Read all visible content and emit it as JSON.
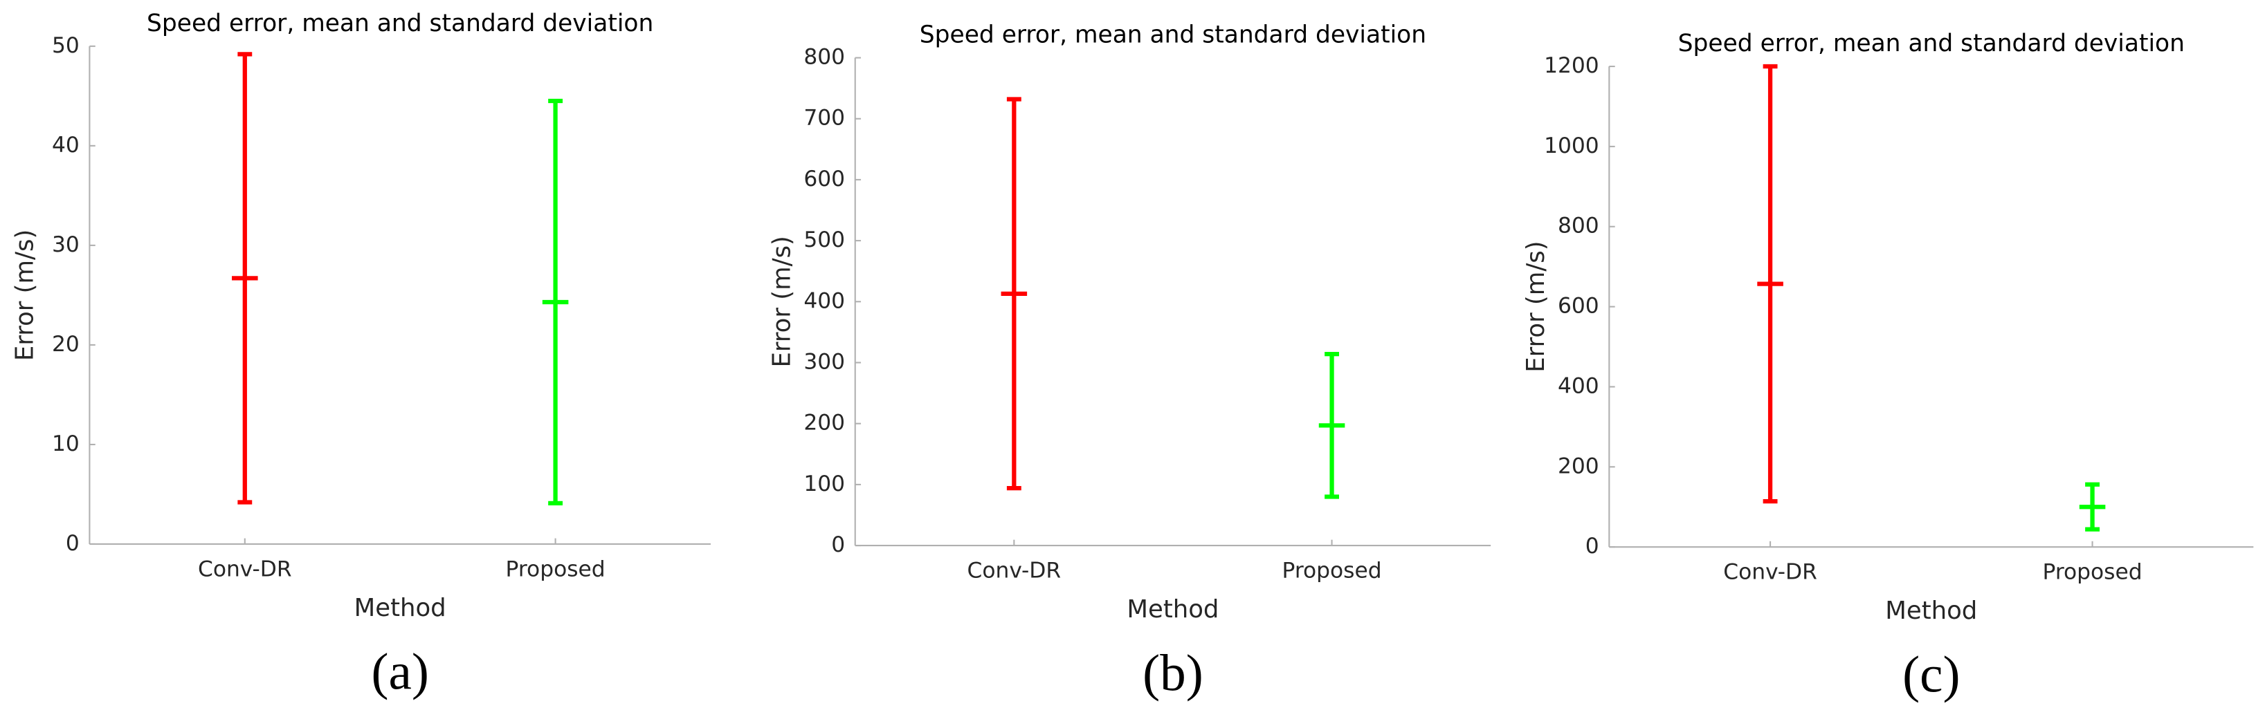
{
  "chart_data": [
    {
      "type": "errorbar",
      "title": "Speed error, mean and standard deviation",
      "xlabel": "Method",
      "ylabel": "Error (m/s)",
      "caption": "(a)",
      "categories": [
        "Conv-DR",
        "Proposed"
      ],
      "values": [
        26.7,
        24.3
      ],
      "errors": [
        22.5,
        20.2
      ],
      "colors": [
        "#ff0000",
        "#00ff00"
      ],
      "ylim": [
        0,
        50
      ],
      "yticks": [
        0,
        10,
        20,
        30,
        40,
        50
      ]
    },
    {
      "type": "errorbar",
      "title": "Speed error, mean and standard deviation",
      "xlabel": "Method",
      "ylabel": "Error (m/s)",
      "caption": "(b)",
      "categories": [
        "Conv-DR",
        "Proposed"
      ],
      "values": [
        413,
        197
      ],
      "errors": [
        319,
        117
      ],
      "colors": [
        "#ff0000",
        "#00ff00"
      ],
      "ylim": [
        0,
        800
      ],
      "yticks": [
        0,
        100,
        200,
        300,
        400,
        500,
        600,
        700,
        800
      ]
    },
    {
      "type": "errorbar",
      "title": "Speed error, mean and standard deviation",
      "xlabel": "Method",
      "ylabel": "Error (m/s)",
      "caption": "(c)",
      "categories": [
        "Conv-DR",
        "Proposed"
      ],
      "values": [
        657,
        100
      ],
      "errors": [
        543,
        56
      ],
      "colors": [
        "#ff0000",
        "#00ff00"
      ],
      "ylim": [
        0,
        1200
      ],
      "yticks": [
        0,
        200,
        400,
        600,
        800,
        1000,
        1200
      ]
    }
  ]
}
